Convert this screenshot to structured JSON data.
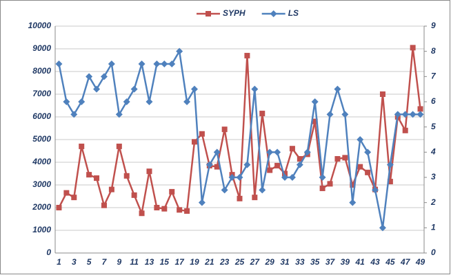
{
  "chart_data": {
    "type": "line",
    "categories": [
      1,
      null,
      3,
      null,
      5,
      null,
      7,
      null,
      9,
      null,
      11,
      null,
      13,
      null,
      15,
      null,
      17,
      null,
      19,
      null,
      21,
      null,
      23,
      null,
      25,
      null,
      27,
      null,
      29,
      null,
      31,
      null,
      33,
      null,
      35,
      null,
      37,
      null,
      39,
      null,
      41,
      null,
      43,
      null,
      45,
      null,
      47,
      null,
      49
    ],
    "series": [
      {
        "name": "SYPH",
        "color": "#c0504d",
        "marker": "square",
        "values": [
          2000,
          2650,
          2450,
          4700,
          3450,
          3300,
          2100,
          2800,
          4700,
          3400,
          2550,
          1750,
          3600,
          2000,
          1950,
          2700,
          1900,
          1850,
          4900,
          5250,
          3850,
          3800,
          5450,
          3450,
          2400,
          8700,
          2450,
          6150,
          3650,
          3850,
          3500,
          4600,
          4150,
          4350,
          5800,
          2850,
          3050,
          4150,
          4200,
          3000,
          3800,
          3550,
          2800,
          7000,
          3150,
          6000,
          5400,
          9050,
          6350
        ]
      },
      {
        "name": "LS",
        "color": "#4f81bd",
        "marker": "diamond",
        "axis": "y2",
        "values": [
          7.5,
          6,
          5.5,
          6,
          7,
          6.5,
          7,
          7.5,
          5.5,
          6,
          6.5,
          7.5,
          6,
          7.5,
          7.5,
          7.5,
          8,
          6,
          6.5,
          2,
          3.5,
          4,
          2.5,
          3,
          3,
          3.5,
          6.5,
          2.5,
          4,
          4,
          3,
          3,
          3.5,
          4,
          6,
          3,
          5.5,
          6.5,
          5.5,
          2,
          4.5,
          4,
          2.5,
          1,
          3.5,
          5.5,
          5.5,
          5.5,
          5.5
        ]
      }
    ],
    "ylim": [
      0,
      10000
    ],
    "yticks": [
      0,
      1000,
      2000,
      3000,
      4000,
      5000,
      6000,
      7000,
      8000,
      9000,
      10000
    ],
    "y2lim": [
      0,
      9
    ],
    "y2ticks": [
      0,
      1,
      2,
      3,
      4,
      5,
      6,
      7,
      8,
      9
    ],
    "grid": true,
    "legend": "top"
  }
}
